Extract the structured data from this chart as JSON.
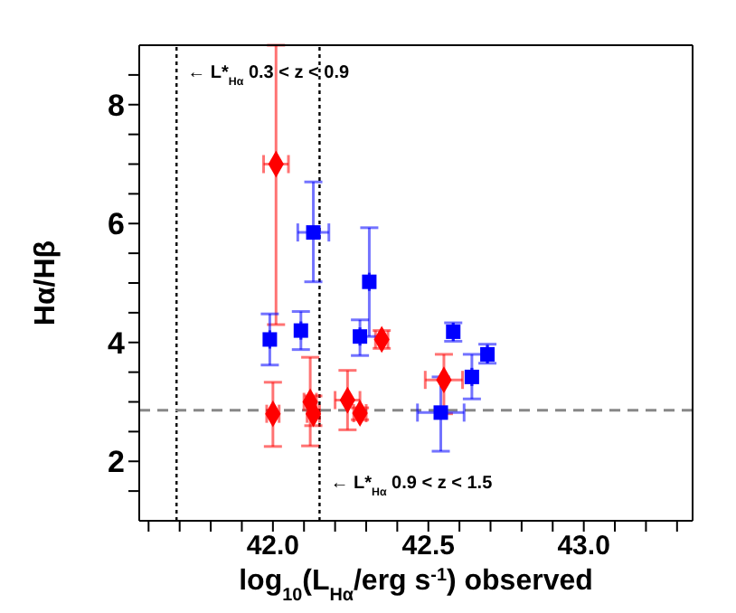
{
  "chart_data": {
    "type": "scatter",
    "xlabel": "log$_{10}$(L$_{Hα}$/erg s$^{-1}$) observed",
    "ylabel": "Hα/Hβ",
    "xlim": [
      41.57,
      43.35
    ],
    "ylim": [
      1,
      9
    ],
    "xticks": [
      {
        "value": 41.6,
        "label": null
      },
      {
        "value": 41.7,
        "label": null
      },
      {
        "value": 41.8,
        "label": null
      },
      {
        "value": 41.9,
        "label": null
      },
      {
        "value": 42,
        "label": "42.0"
      },
      {
        "value": 42.1,
        "label": null
      },
      {
        "value": 42.2,
        "label": null
      },
      {
        "value": 42.3,
        "label": null
      },
      {
        "value": 42.4,
        "label": null
      },
      {
        "value": 42.5,
        "label": "42.5"
      },
      {
        "value": 42.6,
        "label": null
      },
      {
        "value": 42.7,
        "label": null
      },
      {
        "value": 42.8,
        "label": null
      },
      {
        "value": 42.9,
        "label": null
      },
      {
        "value": 43,
        "label": "43.0"
      },
      {
        "value": 43.1,
        "label": null
      },
      {
        "value": 43.2,
        "label": null
      },
      {
        "value": 43.3,
        "label": null
      }
    ],
    "yticks": [
      {
        "value": 1.5,
        "label": null
      },
      2,
      {
        "value": 2.5,
        "label": null
      },
      {
        "value": 3,
        "label": null
      },
      {
        "value": 3.5,
        "label": null
      },
      4,
      {
        "value": 4.5,
        "label": null
      },
      {
        "value": 5,
        "label": null
      },
      {
        "value": 5.5,
        "label": null
      },
      6,
      {
        "value": 6.5,
        "label": null
      },
      {
        "value": 7,
        "label": null
      },
      {
        "value": 7.5,
        "label": null
      },
      8,
      {
        "value": 8.5,
        "label": null
      }
    ],
    "grid": false,
    "legend": false,
    "ref_lines": [
      {
        "axis": "x",
        "value": 41.69,
        "label": "← L*$_{Hα}$ 0.3 < z < 0.9",
        "line_style": "dotted",
        "color": "#000000"
      },
      {
        "axis": "x",
        "value": 42.15,
        "label": "← L*$_{Hα}$ 0.9 < z < 1.5",
        "line_style": "dotted",
        "color": "#000000"
      },
      {
        "axis": "y",
        "value": 2.86,
        "line_style": "dashed",
        "color": "#888888"
      }
    ],
    "series": [
      {
        "color": "#ff0000",
        "marker": "diamond",
        "x": [
          42.01,
          42.0,
          42.12,
          42.13,
          42.24,
          42.28,
          42.35,
          42.55
        ],
        "values": [
          7.0,
          2.8,
          3.0,
          2.8,
          3.03,
          2.81,
          4.05,
          3.37
        ],
        "errors": [
          [
            4.3,
            9
          ],
          [
            2.25,
            3.33
          ],
          [
            2.26,
            3.75
          ],
          [
            2.6,
            3.1
          ],
          [
            2.53,
            3.53
          ],
          [
            2.7,
            2.9
          ],
          [
            3.9,
            4.2
          ],
          [
            2.8,
            3.8
          ]
        ],
        "xerrors": [
          0.04,
          0.02,
          0.02,
          0.02,
          0.04,
          0.02,
          0.02,
          0.06
        ]
      },
      {
        "color": "#0000ff",
        "marker": "square",
        "x": [
          41.99,
          42.09,
          42.13,
          42.31,
          42.28,
          42.54,
          42.58,
          42.64,
          42.69
        ],
        "values": [
          4.05,
          4.2,
          5.85,
          5.02,
          4.1,
          2.82,
          4.18,
          3.42,
          3.8
        ],
        "errors": [
          [
            3.62,
            4.48
          ],
          [
            3.88,
            4.52
          ],
          [
            5.02,
            6.7
          ],
          [
            4.1,
            5.93
          ],
          [
            3.78,
            4.38
          ],
          [
            2.17,
            3.42
          ],
          [
            4.02,
            4.33
          ],
          [
            3.05,
            3.8
          ],
          [
            3.65,
            3.97
          ]
        ],
        "xerrors": [
          null,
          null,
          0.05,
          null,
          null,
          0.075,
          null,
          null,
          null
        ]
      }
    ]
  }
}
